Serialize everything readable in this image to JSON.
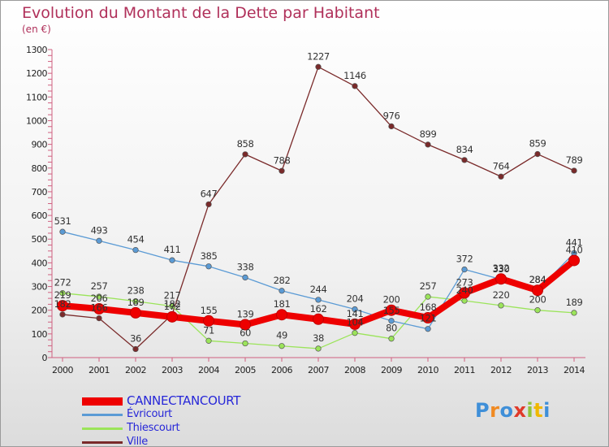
{
  "chart_data": {
    "type": "line",
    "title": "Evolution du Montant de la Dette par Habitant",
    "subtitle": "(en €)",
    "xlabel": "",
    "ylabel": "",
    "ylim": [
      0,
      1300
    ],
    "yticks": [
      0,
      100,
      200,
      300,
      400,
      500,
      600,
      700,
      800,
      900,
      1000,
      1100,
      1200,
      1300
    ],
    "categories": [
      "2000",
      "2001",
      "2002",
      "2003",
      "2004",
      "2005",
      "2006",
      "2007",
      "2008",
      "2009",
      "2010",
      "2011",
      "2012",
      "2013",
      "2014"
    ],
    "grid": false,
    "legend_position": "bottom-left",
    "series": [
      {
        "name": "CANNECTANCOURT",
        "color": "#ee0000",
        "values": [
          219,
          206,
          189,
          172,
          155,
          139,
          181,
          162,
          141,
          200,
          168,
          273,
          332,
          284,
          410
        ]
      },
      {
        "name": "Évricourt",
        "color": "#5b9bd5",
        "values": [
          531,
          493,
          454,
          411,
          385,
          338,
          282,
          244,
          204,
          155,
          121,
          372,
          330,
          284,
          441
        ]
      },
      {
        "name": "Thiescourt",
        "color": "#9be45a",
        "values": [
          272,
          257,
          238,
          217,
          71,
          60,
          49,
          38,
          104,
          80,
          257,
          240,
          220,
          200,
          189
        ]
      },
      {
        "name": "Ville",
        "color": "#7a2a2a",
        "values": [
          182,
          166,
          36,
          182,
          647,
          858,
          788,
          1227,
          1146,
          976,
          899,
          834,
          764,
          859,
          789
        ]
      }
    ]
  },
  "brand": {
    "letters": [
      "P",
      "r",
      "o",
      "x",
      "i",
      "t",
      "i"
    ],
    "colors": [
      "#3f8fd8",
      "#f08a22",
      "#3f8fd8",
      "#e03a2a",
      "#8fc43a",
      "#f0b800",
      "#3f8fd8"
    ]
  }
}
